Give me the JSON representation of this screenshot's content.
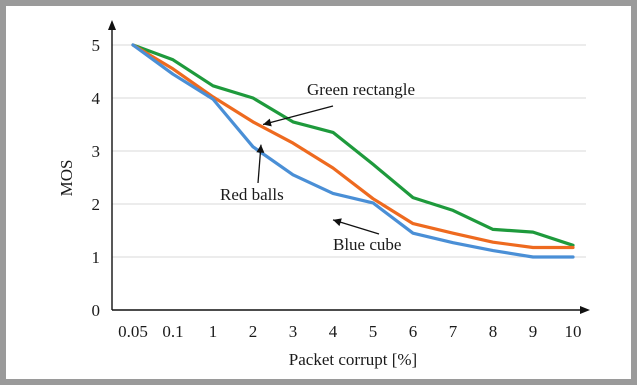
{
  "chart_data": {
    "type": "line",
    "xlabel": "Packet corrupt [%]",
    "ylabel": "MOS",
    "categories": [
      "0.05",
      "0.1",
      "1",
      "2",
      "3",
      "4",
      "5",
      "6",
      "7",
      "8",
      "9",
      "10"
    ],
    "ylim": [
      0,
      5
    ],
    "yticks": [
      "0",
      "1",
      "2",
      "3",
      "4",
      "5"
    ],
    "grid": "horizontal",
    "series": [
      {
        "name": "Green rectangle",
        "color": "#1e9a3c",
        "values": [
          5.0,
          4.72,
          4.23,
          4.0,
          3.55,
          3.35,
          2.75,
          2.12,
          1.88,
          1.52,
          1.47,
          1.22
        ]
      },
      {
        "name": "Red balls",
        "color": "#ee6a1f",
        "values": [
          5.0,
          4.55,
          4.02,
          3.55,
          3.15,
          2.68,
          2.1,
          1.63,
          1.45,
          1.28,
          1.18,
          1.18
        ]
      },
      {
        "name": "Blue cube",
        "color": "#4a8fd6",
        "values": [
          5.0,
          4.45,
          3.98,
          3.08,
          2.55,
          2.2,
          2.02,
          1.45,
          1.27,
          1.12,
          1.0,
          1.0
        ]
      }
    ],
    "annotations": [
      "Green rectangle",
      "Red balls",
      "Blue cube"
    ]
  }
}
